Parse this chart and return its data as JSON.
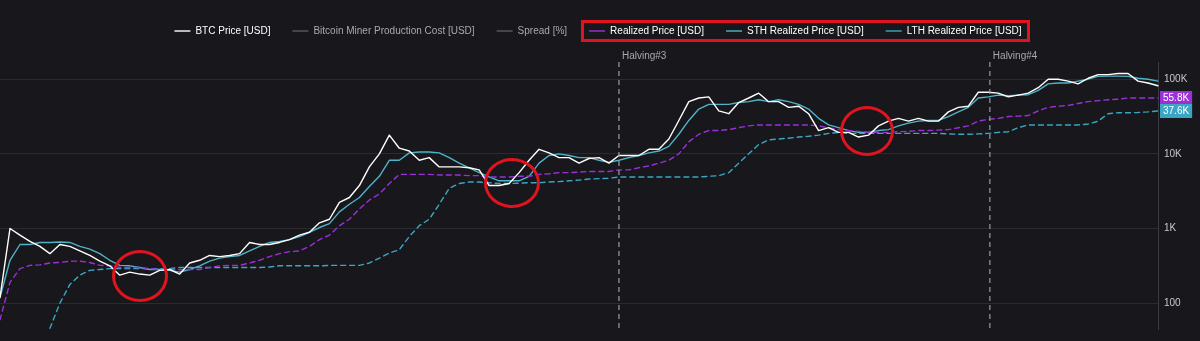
{
  "chart_data": {
    "type": "line",
    "categories": [
      null,
      null,
      null,
      null,
      null,
      null,
      null,
      null,
      null,
      null,
      null,
      null,
      null,
      null,
      null,
      null,
      null,
      null,
      null,
      null,
      null,
      null,
      null,
      null,
      null,
      null,
      null,
      null,
      null,
      null,
      null,
      null,
      null,
      null,
      null,
      null,
      null,
      null,
      null,
      null,
      null,
      null,
      null,
      null,
      null,
      null,
      null,
      null,
      null,
      null,
      null,
      null,
      null,
      null,
      null,
      null,
      null,
      null,
      null,
      null,
      null,
      null,
      null,
      null,
      null,
      null,
      null,
      null,
      null,
      null,
      null,
      null,
      null,
      null,
      null,
      null,
      null,
      null,
      null,
      null,
      null,
      null,
      null,
      null,
      null,
      null,
      null,
      null,
      null,
      null,
      null,
      null,
      null,
      null,
      null,
      null,
      null,
      null,
      null,
      null,
      null,
      null,
      null,
      null,
      null,
      null,
      null,
      null,
      null,
      null,
      null,
      null,
      null,
      null,
      null,
      null,
      null
    ],
    "series": [
      {
        "name": "BTC Price [USD]",
        "color": "#ffffff",
        "values": [
          119,
          1000,
          815,
          670,
          575,
          460,
          610,
          575,
          500,
          435,
          365,
          316,
          237,
          260,
          245,
          237,
          275,
          282,
          245,
          345,
          375,
          435,
          420,
          435,
          460,
          650,
          610,
          610,
          650,
          710,
          815,
          890,
          1190,
          1330,
          2240,
          2600,
          3760,
          6680,
          10000,
          17800,
          11900,
          10900,
          8200,
          8900,
          6680,
          6680,
          6680,
          6500,
          6100,
          3760,
          3760,
          4000,
          5600,
          8200,
          11500,
          10300,
          8900,
          8900,
          7500,
          8660,
          8900,
          7500,
          9500,
          9500,
          9500,
          11500,
          11500,
          15800,
          28000,
          50000,
          56000,
          58000,
          37600,
          34500,
          48700,
          56000,
          65000,
          50000,
          50000,
          42000,
          43500,
          34500,
          20500,
          22400,
          19400,
          19400,
          16800,
          17800,
          23700,
          27400,
          29900,
          27400,
          29900,
          27400,
          27400,
          36500,
          42000,
          43500,
          66800,
          66800,
          65000,
          58000,
          61300,
          65000,
          77000,
          100000,
          100000,
          94400,
          86600,
          103000,
          115000,
          115000,
          119000,
          119000,
          94400,
          89000,
          81800
        ]
      },
      {
        "name": "Bitcoin Miner Production Cost [USD]",
        "color": "#5a5a60",
        "values": [
          null,
          null,
          null,
          null,
          null,
          null,
          null,
          null,
          null,
          null,
          null,
          null,
          null,
          null,
          null,
          null,
          null,
          null,
          null,
          null,
          null,
          null,
          null,
          null,
          null,
          null,
          null,
          null,
          null,
          null,
          null,
          null,
          null,
          null,
          null,
          null,
          null,
          null,
          null,
          null,
          null,
          null,
          null,
          null,
          null,
          null,
          null,
          null,
          null,
          null,
          null,
          null,
          null,
          null,
          null,
          null,
          null,
          null,
          null,
          null,
          null,
          null,
          null,
          null,
          null,
          null,
          null,
          null,
          null,
          null,
          null,
          null,
          null,
          null,
          null,
          null,
          null,
          null,
          null,
          null,
          null,
          null,
          null,
          null,
          null,
          null,
          null,
          null,
          null,
          null,
          null,
          null,
          null,
          null,
          null,
          null,
          null,
          null,
          null,
          null,
          null,
          null,
          null,
          null,
          null,
          null,
          null,
          null,
          null,
          null,
          null,
          null,
          null,
          null,
          null,
          null,
          null
        ]
      },
      {
        "name": "Spread [%]",
        "color": "#5a5a60",
        "values": [
          null,
          null,
          null,
          null,
          null,
          null,
          null,
          null,
          null,
          null,
          null,
          null,
          null,
          null,
          null,
          null,
          null,
          null,
          null,
          null,
          null,
          null,
          null,
          null,
          null,
          null,
          null,
          null,
          null,
          null,
          null,
          null,
          null,
          null,
          null,
          null,
          null,
          null,
          null,
          null,
          null,
          null,
          null,
          null,
          null,
          null,
          null,
          null,
          null,
          null,
          null,
          null,
          null,
          null,
          null,
          null,
          null,
          null,
          null,
          null,
          null,
          null,
          null,
          null,
          null,
          null,
          null,
          null,
          null,
          null,
          null,
          null,
          null,
          null,
          null,
          null,
          null,
          null,
          null,
          null,
          null,
          null,
          null,
          null,
          null,
          null,
          null,
          null,
          null,
          null,
          null,
          null,
          null,
          null,
          null,
          null,
          null,
          null,
          null,
          null,
          null,
          null,
          null,
          null,
          null,
          null,
          null,
          null,
          null,
          null,
          null,
          null,
          null,
          null,
          null,
          null,
          null
        ]
      },
      {
        "name": "Realized Price [USD]",
        "color": "#9b30d9",
        "line_style": "dashed",
        "values": [
          60,
          190,
          290,
          320,
          325,
          345,
          350,
          365,
          365,
          350,
          320,
          316,
          300,
          300,
          300,
          290,
          282,
          282,
          280,
          282,
          282,
          300,
          316,
          320,
          320,
          345,
          375,
          420,
          460,
          490,
          500,
          575,
          710,
          815,
          1090,
          1330,
          1830,
          2400,
          2900,
          4000,
          5300,
          5300,
          5300,
          5300,
          5200,
          5200,
          5200,
          5100,
          5100,
          4900,
          4900,
          4900,
          5000,
          5000,
          5300,
          5400,
          5600,
          5600,
          5700,
          5800,
          5800,
          5800,
          6100,
          6100,
          6500,
          6900,
          7500,
          8200,
          10000,
          14500,
          18300,
          20500,
          20500,
          21100,
          22400,
          23700,
          24400,
          24400,
          24400,
          24400,
          24400,
          24400,
          23700,
          22400,
          21100,
          20500,
          20000,
          19400,
          19400,
          19400,
          19800,
          20000,
          20500,
          20500,
          20800,
          21100,
          22400,
          23700,
          27400,
          29000,
          29900,
          31600,
          32000,
          32600,
          37600,
          42000,
          43500,
          44500,
          47300,
          50000,
          51600,
          53000,
          54000,
          56000,
          56000,
          56000,
          55800
        ],
        "value_labels": [
          null,
          null,
          null,
          null,
          null,
          null,
          null,
          null,
          null,
          null,
          null,
          null,
          null,
          null,
          null,
          null,
          null,
          null,
          null,
          null,
          null,
          null,
          null,
          null,
          null,
          null,
          null,
          null,
          null,
          null,
          null,
          null,
          null,
          null,
          null,
          null,
          null,
          null,
          null,
          null,
          null,
          null,
          null,
          null,
          null,
          null,
          null,
          null,
          null,
          null,
          null,
          null,
          null,
          null,
          null,
          null,
          null,
          null,
          null,
          null,
          null,
          null,
          null,
          null,
          null,
          null,
          null,
          null,
          null,
          null,
          null,
          null,
          null,
          null,
          null,
          null,
          null,
          null,
          null,
          null,
          null,
          null,
          null,
          null,
          null,
          null,
          null,
          null,
          null,
          null,
          null,
          null,
          null,
          null,
          null,
          null,
          null,
          null,
          null,
          null,
          null,
          null,
          null,
          null,
          null,
          null,
          null,
          null,
          null,
          null,
          null,
          null,
          null,
          null,
          null,
          null,
          "55.8K"
        ]
      },
      {
        "name": "STH Realized Price [USD]",
        "color": "#4fb3c8",
        "values": [
          119,
          375,
          610,
          610,
          650,
          650,
          660,
          650,
          575,
          530,
          460,
          375,
          320,
          316,
          300,
          282,
          282,
          275,
          260,
          282,
          316,
          365,
          400,
          420,
          435,
          500,
          575,
          650,
          670,
          710,
          780,
          890,
          1030,
          1160,
          1670,
          2110,
          2600,
          3650,
          5000,
          8200,
          8200,
          10300,
          10600,
          10600,
          10300,
          8900,
          7500,
          6500,
          5600,
          4900,
          4350,
          4350,
          4350,
          5000,
          7500,
          9500,
          10000,
          9500,
          8900,
          8900,
          8200,
          7700,
          8200,
          8900,
          9500,
          10300,
          10900,
          12600,
          18300,
          28000,
          39800,
          46000,
          46000,
          46000,
          48700,
          50000,
          53000,
          50000,
          53000,
          50000,
          46000,
          39800,
          29900,
          24400,
          22400,
          20500,
          19400,
          19400,
          20500,
          21100,
          23700,
          25800,
          27400,
          28000,
          28000,
          31600,
          36500,
          42000,
          56000,
          58000,
          61300,
          60000,
          61300,
          62000,
          70800,
          86600,
          89000,
          89000,
          94400,
          100000,
          109000,
          110000,
          110000,
          109000,
          103000,
          100000,
          94400
        ]
      },
      {
        "name": "LTH Realized Price [USD]",
        "color": "#3aa6c4",
        "line_style": "dashed",
        "values": [
          null,
          null,
          null,
          null,
          null,
          46,
          100,
          178,
          237,
          275,
          282,
          290,
          290,
          290,
          290,
          290,
          290,
          290,
          300,
          300,
          300,
          300,
          300,
          300,
          300,
          300,
          300,
          305,
          316,
          316,
          316,
          316,
          316,
          320,
          320,
          320,
          320,
          345,
          400,
          470,
          520,
          780,
          1090,
          1330,
          2110,
          3450,
          4000,
          4200,
          4200,
          4100,
          4000,
          4000,
          4050,
          4100,
          4100,
          4200,
          4250,
          4350,
          4450,
          4600,
          4650,
          4700,
          4900,
          4900,
          4900,
          4900,
          4900,
          4900,
          4900,
          4900,
          4900,
          5000,
          5100,
          5600,
          7500,
          10000,
          13300,
          15400,
          15800,
          16200,
          16800,
          17200,
          17800,
          18800,
          19400,
          18800,
          18800,
          18800,
          18800,
          18800,
          18800,
          18800,
          18800,
          18800,
          18800,
          18500,
          18300,
          18300,
          18500,
          18800,
          19400,
          19800,
          22400,
          24400,
          24400,
          24400,
          24400,
          24400,
          24400,
          25100,
          27400,
          34500,
          35500,
          35500,
          35800,
          36500,
          37600
        ],
        "value_labels": [
          null,
          null,
          null,
          null,
          null,
          null,
          null,
          null,
          null,
          null,
          null,
          null,
          null,
          null,
          null,
          null,
          null,
          null,
          null,
          null,
          null,
          null,
          null,
          null,
          null,
          null,
          null,
          null,
          null,
          null,
          null,
          null,
          null,
          null,
          null,
          null,
          null,
          null,
          null,
          null,
          null,
          null,
          null,
          null,
          null,
          null,
          null,
          null,
          null,
          null,
          null,
          null,
          null,
          null,
          null,
          null,
          null,
          null,
          null,
          null,
          null,
          null,
          null,
          null,
          null,
          null,
          null,
          null,
          null,
          null,
          null,
          null,
          null,
          null,
          null,
          null,
          null,
          null,
          null,
          null,
          null,
          null,
          null,
          null,
          null,
          null,
          null,
          null,
          null,
          null,
          null,
          null,
          null,
          null,
          null,
          null,
          null,
          null,
          null,
          null,
          null,
          null,
          null,
          null,
          null,
          null,
          null,
          null,
          null,
          null,
          null,
          null,
          null,
          null,
          null,
          null,
          "37.6K"
        ]
      }
    ],
    "log": "y",
    "ylim": [
      45,
      170000
    ],
    "yticks": [
      {
        "value": 100,
        "label": "100"
      },
      {
        "value": 1000,
        "label": "1K"
      },
      {
        "value": 10000,
        "label": "10K"
      },
      {
        "value": 100000,
        "label": "100K"
      }
    ],
    "grid": "y",
    "legend": "top",
    "tick_labels": "y",
    "marker": "none",
    "annotations": [
      "Halving#3",
      "Halving#4"
    ]
  }
}
